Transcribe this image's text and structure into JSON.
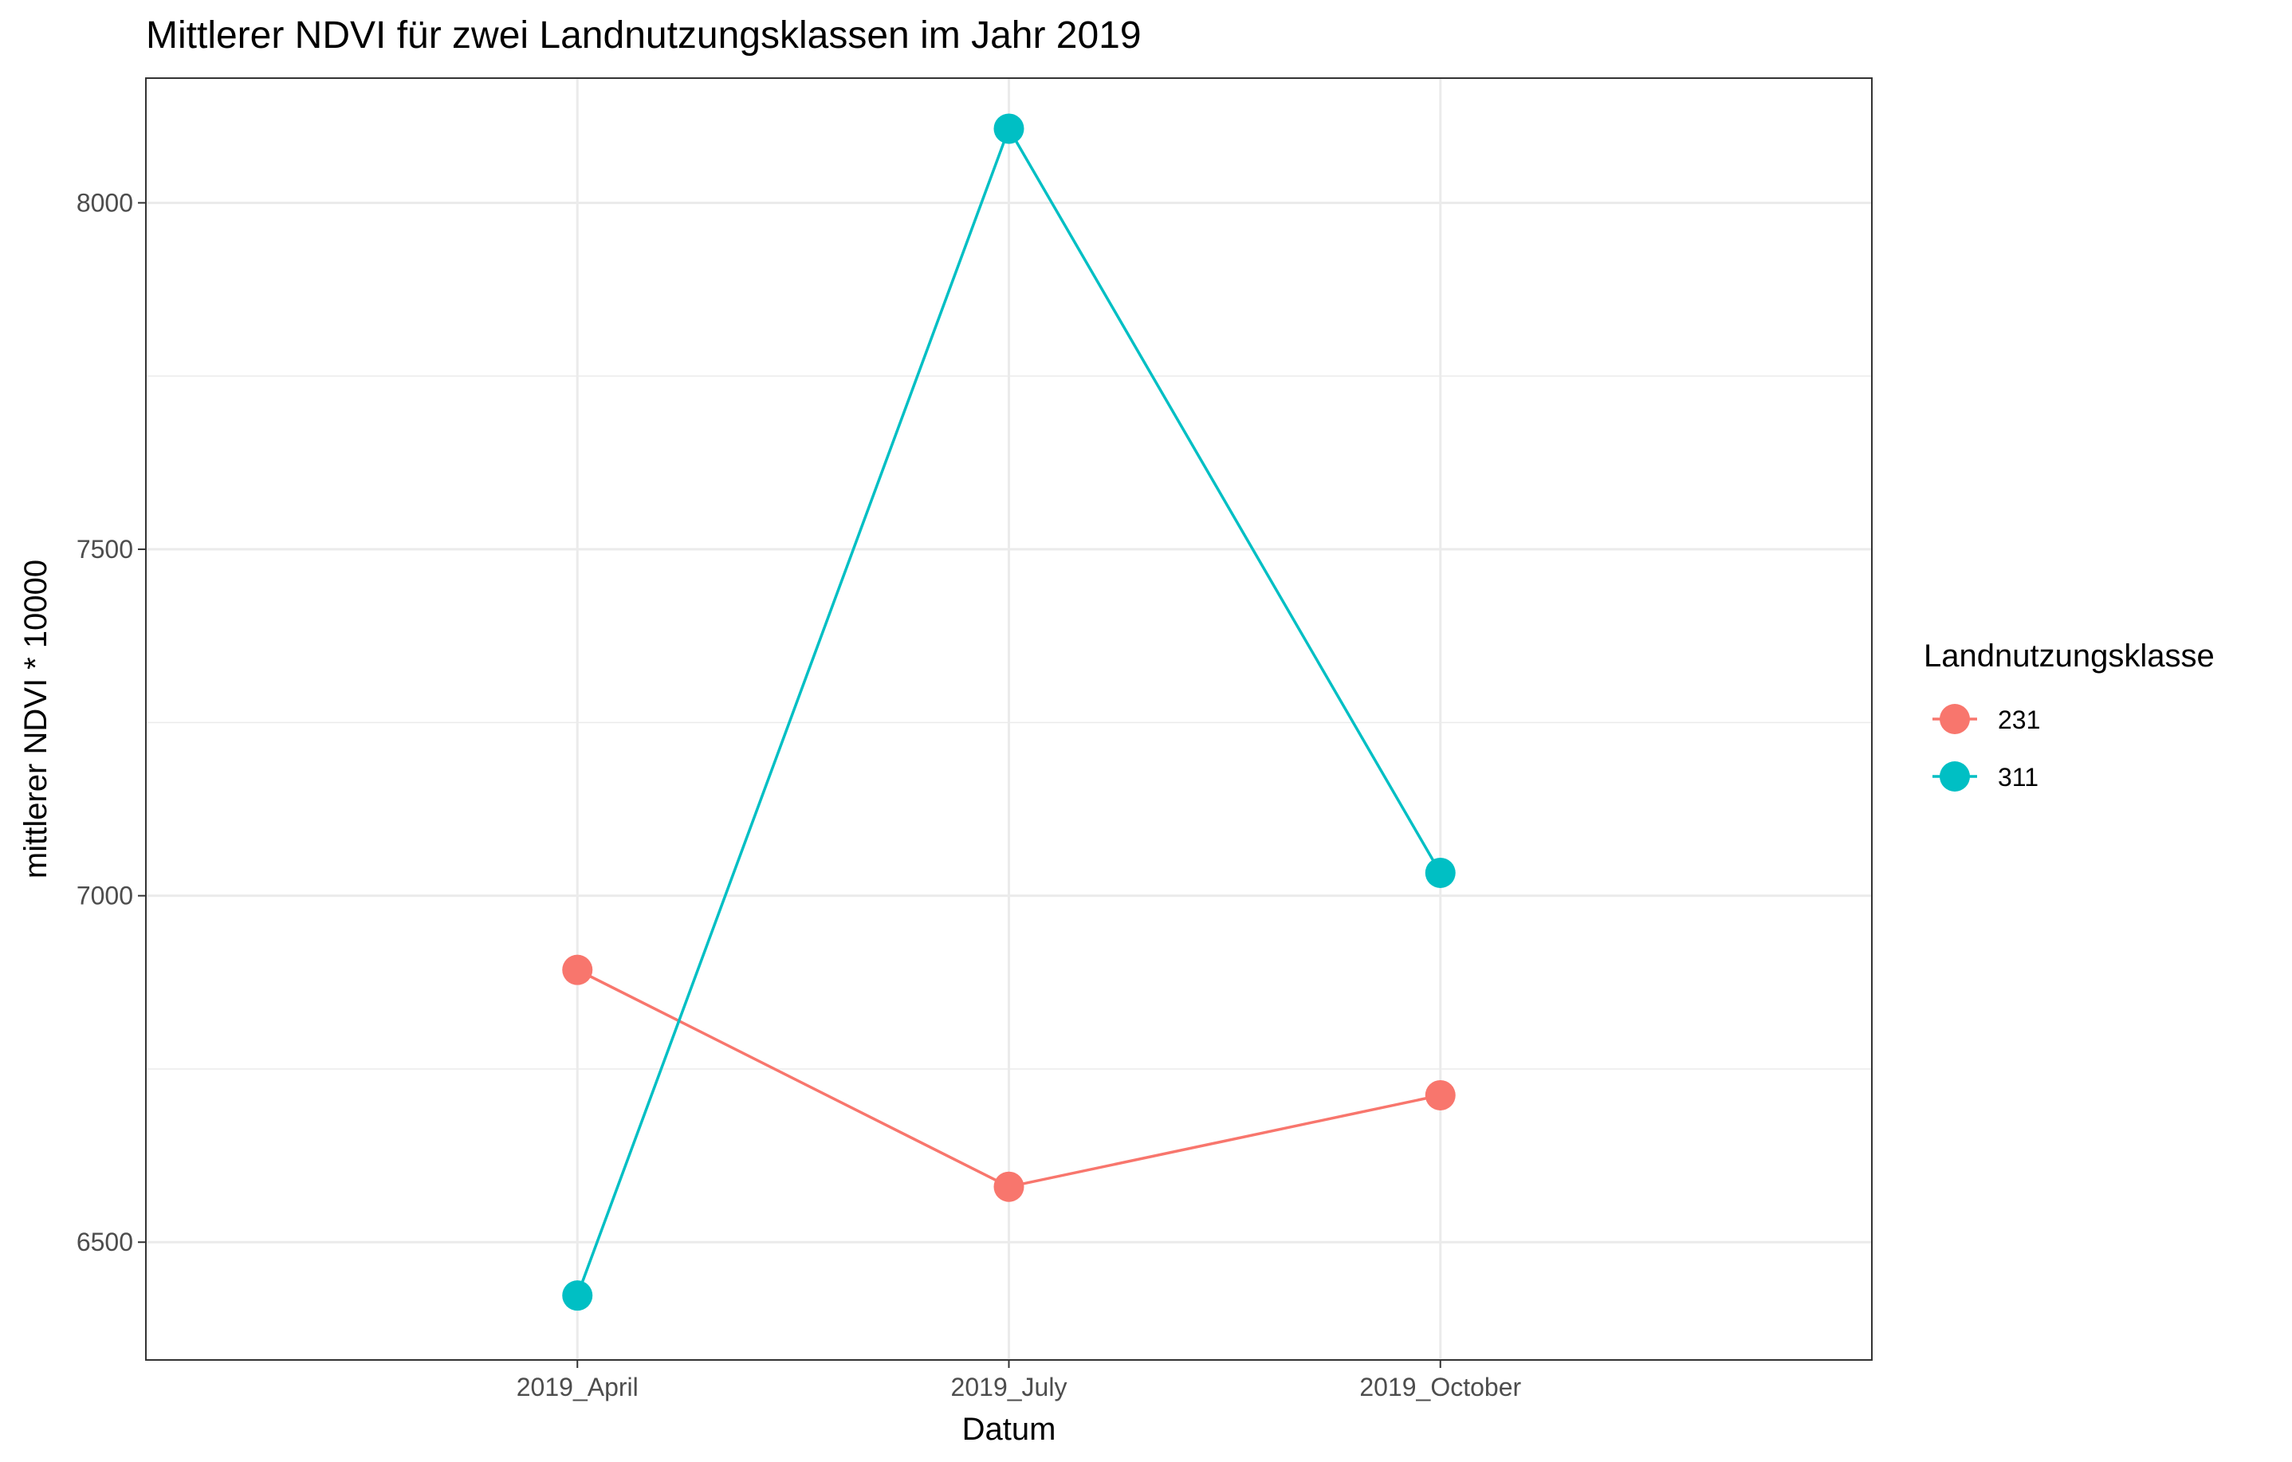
{
  "chart_data": {
    "type": "line",
    "title": "Mittlerer NDVI für zwei Landnutzungsklassen im Jahr 2019",
    "xlabel": "Datum",
    "ylabel": "mittlerer NDVI * 10000",
    "categories": [
      "2019_April",
      "2019_July",
      "2019_October"
    ],
    "ylim": [
      6330,
      8180
    ],
    "y_ticks": [
      6500,
      7000,
      7500,
      8000
    ],
    "y_tick_labels": [
      "6500",
      "7000",
      "7500",
      "8000"
    ],
    "grid": true,
    "legend": {
      "title": "Landnutzungsklasse",
      "position": "right"
    },
    "series": [
      {
        "name": "231",
        "color": "#F8766D",
        "values": [
          6893,
          6580,
          6712
        ]
      },
      {
        "name": "311",
        "color": "#00BFC4",
        "values": [
          6423,
          8107,
          7033
        ]
      }
    ]
  }
}
